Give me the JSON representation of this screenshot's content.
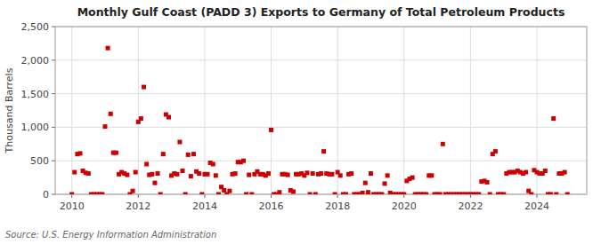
{
  "chart_data": {
    "type": "scatter",
    "title": "Monthly Gulf Coast (PADD 3) Exports to Germany of Total Petroleum Products",
    "y_label": "Thousand Barrels",
    "annotations": [
      "Source: U.S. Energy Information Administration"
    ],
    "color": "#cc0000",
    "marker": "square",
    "grid": true,
    "xlim": [
      2009.5,
      2025.5
    ],
    "xticks": [
      2010,
      2012,
      2014,
      2016,
      2018,
      2020,
      2022,
      2024
    ],
    "ylim": [
      0,
      2500
    ],
    "yticks": [
      0,
      500,
      {
        "value": 1000,
        "label": "1,000"
      },
      {
        "value": 1500,
        "label": "1,500"
      },
      {
        "value": 2000,
        "label": "2,000"
      },
      {
        "value": 2500,
        "label": "2,500"
      }
    ],
    "x": [
      2010.0,
      2010.083,
      2010.167,
      2010.25,
      2010.333,
      2010.417,
      2010.5,
      2010.583,
      2010.667,
      2010.75,
      2010.833,
      2010.917,
      2011.0,
      2011.083,
      2011.167,
      2011.25,
      2011.333,
      2011.417,
      2011.5,
      2011.583,
      2011.667,
      2011.75,
      2011.833,
      2011.917,
      2012.0,
      2012.083,
      2012.167,
      2012.25,
      2012.333,
      2012.417,
      2012.5,
      2012.583,
      2012.667,
      2012.75,
      2012.833,
      2012.917,
      2013.0,
      2013.083,
      2013.167,
      2013.25,
      2013.333,
      2013.417,
      2013.5,
      2013.583,
      2013.667,
      2013.75,
      2013.833,
      2013.917,
      2014.0,
      2014.083,
      2014.167,
      2014.25,
      2014.333,
      2014.417,
      2014.5,
      2014.583,
      2014.667,
      2014.75,
      2014.833,
      2014.917,
      2015.0,
      2015.083,
      2015.167,
      2015.25,
      2015.333,
      2015.417,
      2015.5,
      2015.583,
      2015.667,
      2015.75,
      2015.833,
      2015.917,
      2016.0,
      2016.083,
      2016.167,
      2016.25,
      2016.333,
      2016.417,
      2016.5,
      2016.583,
      2016.667,
      2016.75,
      2016.833,
      2016.917,
      2017.0,
      2017.083,
      2017.167,
      2017.25,
      2017.333,
      2017.417,
      2017.5,
      2017.583,
      2017.667,
      2017.75,
      2017.833,
      2017.917,
      2018.0,
      2018.083,
      2018.167,
      2018.25,
      2018.333,
      2018.417,
      2018.5,
      2018.583,
      2018.667,
      2018.75,
      2018.833,
      2018.917,
      2019.0,
      2019.083,
      2019.167,
      2019.25,
      2019.333,
      2019.417,
      2019.5,
      2019.583,
      2019.667,
      2019.75,
      2019.833,
      2019.917,
      2020.0,
      2020.083,
      2020.167,
      2020.25,
      2020.333,
      2020.417,
      2020.5,
      2020.583,
      2020.667,
      2020.75,
      2020.833,
      2020.917,
      2021.0,
      2021.083,
      2021.167,
      2021.25,
      2021.333,
      2021.417,
      2021.5,
      2021.583,
      2021.667,
      2021.75,
      2021.833,
      2021.917,
      2022.0,
      2022.083,
      2022.167,
      2022.25,
      2022.333,
      2022.417,
      2022.5,
      2022.583,
      2022.667,
      2022.75,
      2022.833,
      2022.917,
      2023.0,
      2023.083,
      2023.167,
      2023.25,
      2023.333,
      2023.417,
      2023.5,
      2023.583,
      2023.667,
      2023.75,
      2023.833,
      2023.917,
      2024.0,
      2024.083,
      2024.167,
      2024.25,
      2024.333,
      2024.417,
      2024.5,
      2024.583,
      2024.667,
      2024.75,
      2024.833,
      2024.917
    ],
    "values": [
      0,
      330,
      600,
      610,
      350,
      320,
      310,
      0,
      0,
      0,
      0,
      0,
      1010,
      2180,
      1200,
      620,
      620,
      300,
      330,
      310,
      290,
      0,
      50,
      330,
      1080,
      1130,
      1600,
      450,
      290,
      300,
      170,
      310,
      0,
      600,
      1190,
      1150,
      280,
      310,
      300,
      780,
      350,
      0,
      590,
      270,
      600,
      340,
      310,
      0,
      300,
      300,
      470,
      450,
      280,
      0,
      110,
      60,
      0,
      50,
      300,
      310,
      480,
      480,
      500,
      0,
      290,
      0,
      300,
      340,
      300,
      300,
      280,
      310,
      960,
      0,
      0,
      30,
      300,
      300,
      290,
      60,
      40,
      300,
      300,
      310,
      280,
      320,
      0,
      310,
      0,
      300,
      310,
      640,
      310,
      300,
      300,
      0,
      330,
      280,
      0,
      0,
      300,
      310,
      0,
      0,
      0,
      20,
      170,
      30,
      310,
      0,
      0,
      0,
      0,
      160,
      280,
      20,
      0,
      0,
      0,
      0,
      0,
      200,
      230,
      250,
      0,
      0,
      0,
      0,
      0,
      280,
      280,
      0,
      0,
      0,
      750,
      0,
      0,
      0,
      0,
      0,
      0,
      0,
      0,
      0,
      0,
      0,
      0,
      0,
      190,
      200,
      180,
      0,
      600,
      640,
      0,
      0,
      0,
      310,
      330,
      330,
      330,
      350,
      330,
      310,
      330,
      50,
      0,
      360,
      330,
      310,
      310,
      350,
      0,
      0,
      1130,
      0,
      310,
      310,
      330,
      0
    ]
  }
}
